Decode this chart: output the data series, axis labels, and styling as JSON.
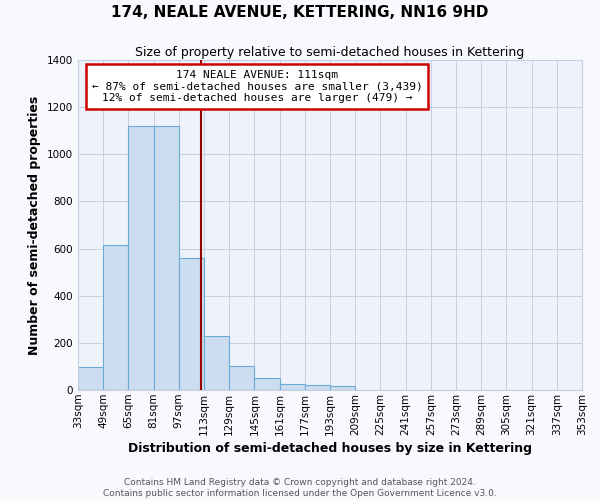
{
  "title": "174, NEALE AVENUE, KETTERING, NN16 9HD",
  "subtitle": "Size of property relative to semi-detached houses in Kettering",
  "xlabel": "Distribution of semi-detached houses by size in Kettering",
  "ylabel": "Number of semi-detached properties",
  "property_size": 111,
  "bin_edges": [
    33,
    49,
    65,
    81,
    97,
    113,
    129,
    145,
    161,
    177,
    193,
    209,
    225,
    241,
    257,
    273,
    289,
    305,
    321,
    337,
    353
  ],
  "counts": [
    97,
    617,
    1120,
    1120,
    560,
    228,
    100,
    50,
    25,
    20,
    15,
    0,
    0,
    0,
    0,
    0,
    0,
    0,
    0,
    0
  ],
  "bar_facecolor": "#ccddf0",
  "bar_edgecolor": "#6aaad4",
  "vline_color": "#990000",
  "vline_x": 111,
  "annotation_title": "174 NEALE AVENUE: 111sqm",
  "annotation_line1": "← 87% of semi-detached houses are smaller (3,439)",
  "annotation_line2": "12% of semi-detached houses are larger (479) →",
  "annotation_box_facecolor": "#ffffff",
  "annotation_box_edgecolor": "#cc0000",
  "ylim": [
    0,
    1400
  ],
  "yticks": [
    0,
    200,
    400,
    600,
    800,
    1000,
    1200,
    1400
  ],
  "footer_line1": "Contains HM Land Registry data © Crown copyright and database right 2024.",
  "footer_line2": "Contains public sector information licensed under the Open Government Licence v3.0.",
  "bg_color": "#f7f9fd",
  "plot_bg_color": "#eef2fa",
  "title_fontsize": 11,
  "subtitle_fontsize": 9,
  "axis_label_fontsize": 9,
  "tick_fontsize": 7.5,
  "footer_fontsize": 6.5,
  "grid_color": "#c5cfe0"
}
